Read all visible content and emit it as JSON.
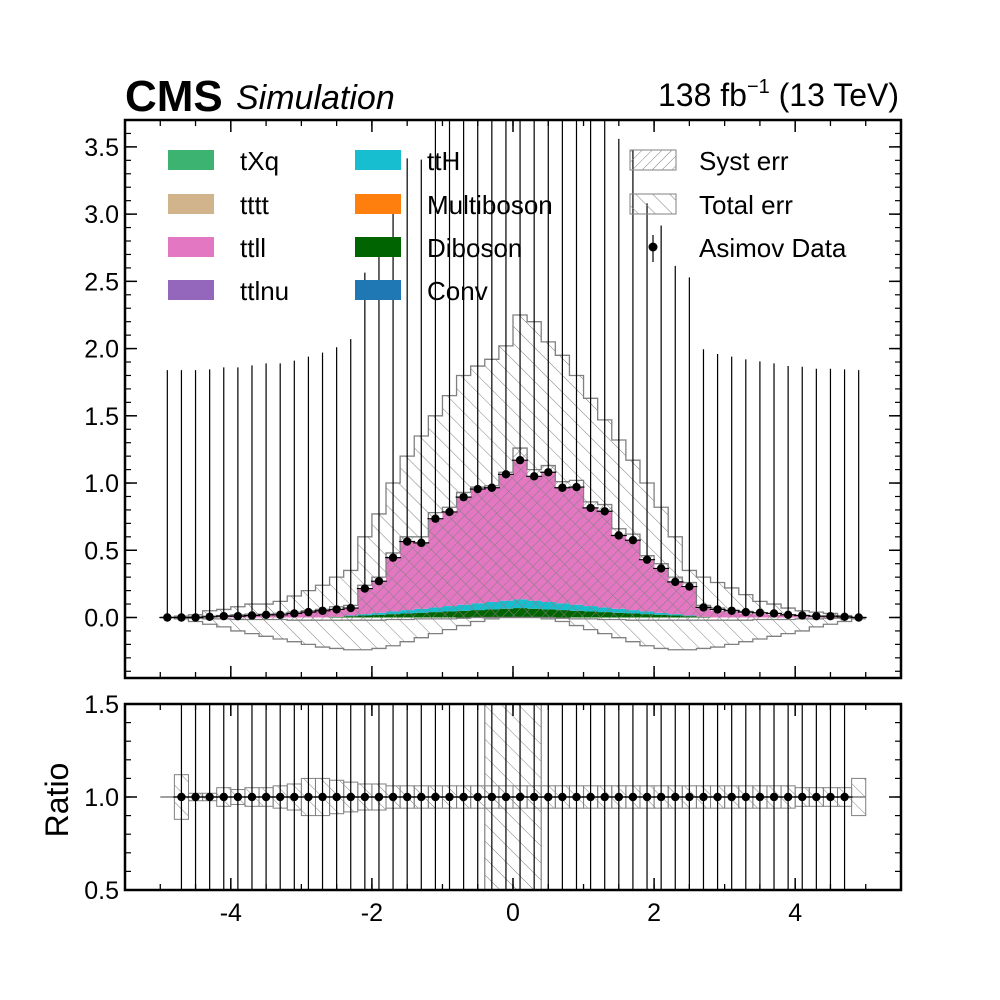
{
  "header": {
    "brand": "CMS",
    "tag": "Simulation",
    "lumi_value": "138 fb",
    "lumi_exp": "−1",
    "lumi_energy": " (13 TeV)"
  },
  "chart_data": [
    {
      "type": "bar",
      "stacked": true,
      "panel": "main",
      "title": "",
      "xlabel": "",
      "ylabel": "",
      "xlim": [
        -5.5,
        5.5
      ],
      "ylim": [
        -0.45,
        3.7
      ],
      "x_ticks": [
        -4,
        -2,
        0,
        2,
        4
      ],
      "y_ticks": [
        0.0,
        0.5,
        1.0,
        1.5,
        2.0,
        2.5,
        3.0,
        3.5
      ],
      "y_tick_labels": [
        "0.0",
        "0.5",
        "1.0",
        "1.5",
        "2.0",
        "2.5",
        "3.0",
        "3.5"
      ],
      "grid": false,
      "legend_position": "top",
      "bin_edges": [
        -5.0,
        -4.8,
        -4.6,
        -4.4,
        -4.2,
        -4.0,
        -3.8,
        -3.6,
        -3.4,
        -3.2,
        -3.0,
        -2.8,
        -2.6,
        -2.4,
        -2.2,
        -2.0,
        -1.8,
        -1.6,
        -1.4,
        -1.2,
        -1.0,
        -0.8,
        -0.6,
        -0.4,
        -0.2,
        0.0,
        0.2,
        0.4,
        0.6,
        0.8,
        1.0,
        1.2,
        1.4,
        1.6,
        1.8,
        2.0,
        2.2,
        2.4,
        2.6,
        2.8,
        3.0,
        3.2,
        3.4,
        3.6,
        3.8,
        4.0,
        4.2,
        4.4,
        4.6,
        4.8,
        5.0
      ],
      "series": [
        {
          "name": "Conv",
          "color": "#1f77b4",
          "values": [
            0,
            0,
            0,
            0,
            0,
            0,
            0,
            0,
            0,
            0,
            0,
            0,
            0,
            0,
            0,
            0,
            0,
            0,
            0,
            0,
            0,
            0,
            0,
            0,
            0,
            0,
            0,
            0,
            0,
            0,
            0,
            0,
            0,
            0,
            0,
            0,
            0,
            0,
            0,
            0,
            0,
            0,
            0,
            0,
            0,
            0,
            0,
            0,
            0,
            0
          ]
        },
        {
          "name": "Diboson",
          "color": "#006400",
          "values": [
            0,
            0,
            0,
            0,
            0,
            0,
            0,
            0,
            0,
            0,
            0,
            0,
            0.005,
            0.01,
            0.015,
            0.02,
            0.025,
            0.03,
            0.035,
            0.04,
            0.045,
            0.05,
            0.055,
            0.06,
            0.065,
            0.07,
            0.065,
            0.06,
            0.055,
            0.05,
            0.045,
            0.04,
            0.035,
            0.03,
            0.025,
            0.02,
            0.015,
            0.01,
            0.005,
            0,
            0,
            0,
            0,
            0,
            0,
            0,
            0,
            0,
            0,
            0
          ]
        },
        {
          "name": "Multiboson",
          "color": "#ff7f0e",
          "values": [
            0,
            0,
            0,
            0,
            0,
            0,
            0,
            0,
            0,
            0,
            0,
            0,
            0,
            0,
            0,
            0,
            0,
            0,
            0,
            0,
            0,
            0,
            0,
            0,
            0,
            0,
            0,
            0,
            0,
            0,
            0,
            0,
            0,
            0,
            0,
            0,
            0,
            0,
            0,
            0,
            0,
            0,
            0,
            0,
            0,
            0,
            0,
            0,
            0,
            0
          ]
        },
        {
          "name": "ttH",
          "color": "#17becf",
          "values": [
            0,
            0,
            0,
            0,
            0,
            0,
            0,
            0,
            0,
            0,
            0,
            0,
            0,
            0.005,
            0.01,
            0.015,
            0.02,
            0.025,
            0.03,
            0.035,
            0.04,
            0.045,
            0.05,
            0.055,
            0.06,
            0.065,
            0.06,
            0.055,
            0.05,
            0.045,
            0.04,
            0.035,
            0.03,
            0.025,
            0.02,
            0.015,
            0.01,
            0.005,
            0,
            0,
            0,
            0,
            0,
            0,
            0,
            0,
            0,
            0,
            0,
            0
          ]
        },
        {
          "name": "ttlnu",
          "color": "#9467bd",
          "values": [
            0,
            0,
            0,
            0,
            0,
            0,
            0,
            0,
            0,
            0,
            0,
            0,
            0,
            0,
            0,
            0,
            0,
            0,
            0,
            0,
            0,
            0,
            0,
            0,
            0,
            0,
            0,
            0,
            0,
            0,
            0,
            0,
            0,
            0,
            0,
            0,
            0,
            0,
            0,
            0,
            0,
            0,
            0,
            0,
            0,
            0,
            0,
            0,
            0,
            0
          ]
        },
        {
          "name": "ttll",
          "color": "#e377c2",
          "values": [
            0,
            0,
            0,
            0.005,
            0.01,
            0.01,
            0.015,
            0.02,
            0.02,
            0.03,
            0.04,
            0.05,
            0.055,
            0.06,
            0.19,
            0.235,
            0.4,
            0.51,
            0.49,
            0.66,
            0.7,
            0.8,
            0.85,
            0.85,
            0.94,
            1.035,
            0.925,
            0.965,
            0.86,
            0.875,
            0.73,
            0.715,
            0.545,
            0.52,
            0.385,
            0.33,
            0.24,
            0.21,
            0.065,
            0.05,
            0.04,
            0.03,
            0.025,
            0.02,
            0.015,
            0.01,
            0.005,
            0.005,
            0,
            0
          ]
        },
        {
          "name": "tttt",
          "color": "#d2b48c",
          "values": [
            0,
            0,
            0,
            0,
            0,
            0,
            0,
            0,
            0,
            0,
            0,
            0,
            0,
            0,
            0,
            0,
            0,
            0,
            0,
            0,
            0,
            0,
            0,
            0,
            0,
            0,
            0,
            0,
            0,
            0,
            0,
            0,
            0,
            0,
            0,
            0,
            0,
            0,
            0,
            0,
            0,
            0,
            0,
            0,
            0,
            0,
            0,
            0,
            0,
            0
          ]
        },
        {
          "name": "tXq",
          "color": "#3cb371",
          "values": [
            0,
            0,
            0,
            0,
            0,
            0,
            0,
            0,
            0,
            0,
            0,
            0,
            0,
            0,
            0,
            0,
            0,
            0,
            0,
            0,
            0,
            0,
            0,
            0,
            0,
            0,
            0,
            0,
            0,
            0,
            0,
            0,
            0,
            0,
            0,
            0,
            0,
            0,
            0,
            0,
            0,
            0,
            0,
            0,
            0,
            0,
            0,
            0,
            0,
            0
          ]
        }
      ],
      "syst_err": {
        "name": "Syst err",
        "up": [
          0,
          0,
          0.005,
          0.01,
          0.015,
          0.02,
          0.025,
          0.025,
          0.03,
          0.04,
          0.05,
          0.06,
          0.08,
          0.09,
          0.24,
          0.3,
          0.48,
          0.6,
          0.6,
          0.78,
          0.82,
          0.93,
          0.97,
          0.98,
          1.08,
          1.26,
          1.1,
          1.13,
          1.01,
          1.02,
          0.86,
          0.84,
          0.66,
          0.62,
          0.46,
          0.4,
          0.3,
          0.26,
          0.09,
          0.07,
          0.055,
          0.045,
          0.035,
          0.03,
          0.02,
          0.015,
          0.01,
          0.01,
          0.005,
          0
        ],
        "down": [
          0,
          0,
          -0.005,
          -0.01,
          -0.01,
          -0.015,
          -0.015,
          -0.015,
          -0.015,
          -0.02,
          -0.02,
          -0.02,
          -0.02,
          -0.02,
          -0.02,
          -0.02,
          -0.015,
          -0.015,
          -0.01,
          -0.01,
          -0.01,
          -0.005,
          0,
          0,
          0,
          0,
          0,
          0,
          -0.005,
          -0.01,
          -0.01,
          -0.015,
          -0.015,
          -0.02,
          -0.02,
          -0.02,
          -0.02,
          -0.02,
          -0.02,
          -0.02,
          -0.02,
          -0.02,
          -0.015,
          -0.015,
          -0.015,
          -0.01,
          -0.01,
          -0.005,
          -0.005,
          0
        ]
      },
      "total_err": {
        "name": "Total err",
        "up": [
          0,
          0.01,
          0.02,
          0.05,
          0.06,
          0.08,
          0.1,
          0.1,
          0.12,
          0.16,
          0.2,
          0.24,
          0.3,
          0.35,
          0.6,
          0.77,
          1.0,
          1.2,
          1.35,
          1.5,
          1.65,
          1.8,
          1.87,
          1.92,
          2.02,
          2.25,
          2.2,
          2.05,
          1.95,
          1.8,
          1.63,
          1.47,
          1.32,
          1.17,
          1.0,
          0.82,
          0.6,
          0.35,
          0.3,
          0.26,
          0.22,
          0.17,
          0.12,
          0.1,
          0.07,
          0.05,
          0.04,
          0.03,
          0.015,
          0
        ],
        "down": [
          0,
          -0.01,
          -0.03,
          -0.05,
          -0.07,
          -0.1,
          -0.12,
          -0.14,
          -0.16,
          -0.18,
          -0.2,
          -0.22,
          -0.23,
          -0.24,
          -0.24,
          -0.23,
          -0.21,
          -0.18,
          -0.15,
          -0.12,
          -0.09,
          -0.06,
          -0.03,
          -0.01,
          0,
          0,
          0,
          -0.01,
          -0.03,
          -0.06,
          -0.09,
          -0.12,
          -0.15,
          -0.18,
          -0.21,
          -0.23,
          -0.24,
          -0.24,
          -0.23,
          -0.22,
          -0.2,
          -0.18,
          -0.16,
          -0.14,
          -0.12,
          -0.1,
          -0.07,
          -0.05,
          -0.03,
          -0.01
        ]
      },
      "data": {
        "name": "Asimov Data",
        "x": [
          -4.9,
          -4.7,
          -4.5,
          -4.3,
          -4.1,
          -3.9,
          -3.7,
          -3.5,
          -3.3,
          -3.1,
          -2.9,
          -2.7,
          -2.5,
          -2.3,
          -2.1,
          -1.9,
          -1.7,
          -1.5,
          -1.3,
          -1.1,
          -0.9,
          -0.7,
          -0.5,
          -0.3,
          -0.1,
          0.1,
          0.3,
          0.5,
          0.7,
          0.9,
          1.1,
          1.3,
          1.5,
          1.7,
          1.9,
          2.1,
          2.3,
          2.5,
          2.7,
          2.9,
          3.1,
          3.3,
          3.5,
          3.7,
          3.9,
          4.1,
          4.3,
          4.5,
          4.7,
          4.9
        ],
        "y": [
          0,
          0,
          0,
          0.005,
          0.01,
          0.01,
          0.015,
          0.02,
          0.02,
          0.03,
          0.04,
          0.05,
          0.06,
          0.07,
          0.215,
          0.27,
          0.445,
          0.565,
          0.555,
          0.735,
          0.785,
          0.895,
          0.955,
          0.965,
          1.065,
          1.17,
          1.05,
          1.08,
          0.965,
          0.97,
          0.815,
          0.79,
          0.61,
          0.575,
          0.43,
          0.365,
          0.265,
          0.23,
          0.075,
          0.06,
          0.05,
          0.04,
          0.035,
          0.03,
          0.02,
          0.015,
          0.01,
          0.01,
          0.005,
          0
        ],
        "yerr_up": [
          1.84,
          1.84,
          1.84,
          1.84,
          1.85,
          1.85,
          1.86,
          1.87,
          1.87,
          1.88,
          1.9,
          1.92,
          1.95,
          2.0,
          2.35,
          2.45,
          2.65,
          2.85,
          2.85,
          3.05,
          3.15,
          3.3,
          3.4,
          3.4,
          3.55,
          3.7,
          3.55,
          3.6,
          3.45,
          3.45,
          3.25,
          3.2,
          2.95,
          2.9,
          2.65,
          2.55,
          2.35,
          2.3,
          1.92,
          1.9,
          1.89,
          1.88,
          1.87,
          1.86,
          1.85,
          1.85,
          1.84,
          1.84,
          1.84,
          1.84
        ]
      }
    },
    {
      "type": "bar",
      "panel": "ratio",
      "title": "",
      "xlabel": "",
      "ylabel": "Ratio",
      "xlim": [
        -5.5,
        5.5
      ],
      "ylim": [
        0.5,
        1.5
      ],
      "x_ticks": [
        -4,
        -2,
        0,
        2,
        4
      ],
      "x_tick_labels": [
        "-4",
        "-2",
        "0",
        "2",
        "4"
      ],
      "y_ticks": [
        0.5,
        1.0,
        1.5
      ],
      "y_tick_labels": [
        "0.5",
        "1.0",
        "1.5"
      ],
      "grid": false,
      "reference_line": 1.0,
      "bin_edges": [
        -5.0,
        -4.8,
        -4.6,
        -4.4,
        -4.2,
        -4.0,
        -3.8,
        -3.6,
        -3.4,
        -3.2,
        -3.0,
        -2.8,
        -2.6,
        -2.4,
        -2.2,
        -2.0,
        -1.8,
        -1.6,
        -1.4,
        -1.2,
        -1.0,
        -0.8,
        -0.6,
        -0.4,
        -0.2,
        0.0,
        0.2,
        0.4,
        0.6,
        0.8,
        1.0,
        1.2,
        1.4,
        1.6,
        1.8,
        2.0,
        2.2,
        2.4,
        2.6,
        2.8,
        3.0,
        3.2,
        3.4,
        3.6,
        3.8,
        4.0,
        4.2,
        4.4,
        4.6,
        4.8,
        5.0
      ],
      "err_halfwidth": [
        0,
        0.12,
        0.02,
        0.02,
        0.05,
        0.04,
        0.05,
        0.05,
        0.06,
        0.07,
        0.1,
        0.1,
        0.09,
        0.08,
        0.07,
        0.07,
        0.06,
        0.06,
        0.06,
        0.06,
        0.06,
        0.06,
        0.06,
        0.06,
        0.06,
        0.06,
        0.06,
        0.06,
        0.06,
        0.06,
        0.06,
        0.06,
        0.06,
        0.06,
        0.06,
        0.06,
        0.06,
        0.06,
        0.06,
        0.06,
        0.06,
        0.06,
        0.06,
        0.06,
        0.06,
        0.05,
        0.05,
        0.05,
        0.05,
        0.1
      ],
      "wide_err_band": {
        "x0": -0.4,
        "x1": 0.4,
        "lo": 0.5,
        "hi": 1.5
      },
      "data": {
        "x": [
          -4.7,
          -4.5,
          -4.3,
          -4.1,
          -3.9,
          -3.7,
          -3.5,
          -3.3,
          -3.1,
          -2.9,
          -2.7,
          -2.5,
          -2.3,
          -2.1,
          -1.9,
          -1.7,
          -1.5,
          -1.3,
          -1.1,
          -0.9,
          -0.7,
          -0.5,
          -0.3,
          -0.1,
          0.1,
          0.3,
          0.5,
          0.7,
          0.9,
          1.1,
          1.3,
          1.5,
          1.7,
          1.9,
          2.1,
          2.3,
          2.5,
          2.7,
          2.9,
          3.1,
          3.3,
          3.5,
          3.7,
          3.9,
          4.1,
          4.3,
          4.5,
          4.7
        ],
        "y": [
          1,
          1,
          1,
          1,
          1,
          1,
          1,
          1,
          1,
          1,
          1,
          1,
          1,
          1,
          1,
          1,
          1,
          1,
          1,
          1,
          1,
          1,
          1,
          1,
          1,
          1,
          1,
          1,
          1,
          1,
          1,
          1,
          1,
          1,
          1,
          1,
          1,
          1,
          1,
          1,
          1,
          1,
          1,
          1,
          1,
          1,
          1,
          1
        ]
      }
    }
  ]
}
